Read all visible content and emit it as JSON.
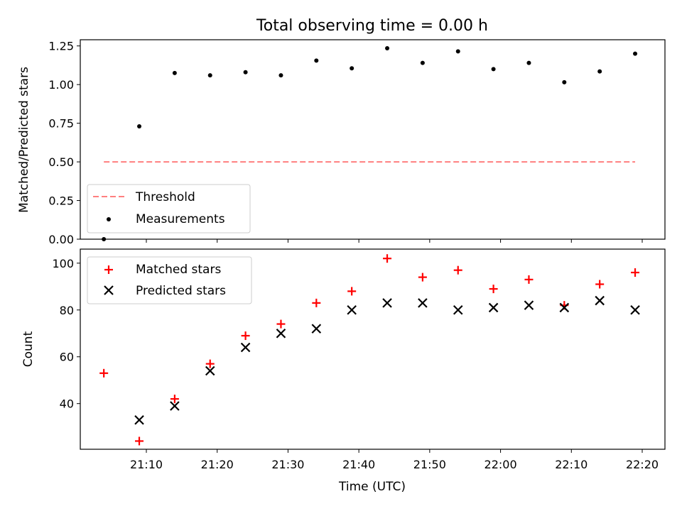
{
  "chart_data": {
    "title": "Total observing time = 0.00 h",
    "x_label": "Time (UTC)",
    "x_ticks": [
      "21:10",
      "21:20",
      "21:30",
      "21:40",
      "21:50",
      "22:00",
      "22:10",
      "22:20"
    ],
    "times": [
      "21:04",
      "21:09",
      "21:14",
      "21:19",
      "21:24",
      "21:29",
      "21:34",
      "21:39",
      "21:44",
      "21:49",
      "21:54",
      "21:59",
      "22:04",
      "22:09",
      "22:14",
      "22:19"
    ],
    "panels": [
      {
        "type": "scatter",
        "ylabel": "Matched/Predicted stars",
        "ylim": [
          0,
          1.29
        ],
        "y_ticks": [
          "0.00",
          "0.25",
          "0.50",
          "0.75",
          "1.00",
          "1.25"
        ],
        "threshold": {
          "name": "Threshold",
          "value": 0.5,
          "color": "#ff7f7f",
          "style": "dashed"
        },
        "series": [
          {
            "name": "Measurements",
            "marker": "dot",
            "color": "#000000",
            "values": [
              0.0,
              0.73,
              1.075,
              1.06,
              1.08,
              1.06,
              1.155,
              1.105,
              1.235,
              1.14,
              1.215,
              1.1,
              1.14,
              1.015,
              1.085,
              1.2
            ]
          }
        ],
        "legend": "lower-left"
      },
      {
        "type": "scatter",
        "ylabel": "Count",
        "ylim": [
          20.5,
          106
        ],
        "y_ticks": [
          "40",
          "60",
          "80",
          "100"
        ],
        "series": [
          {
            "name": "Matched stars",
            "marker": "plus",
            "color": "#ff0000",
            "values": [
              53,
              24,
              42,
              57,
              69,
              74,
              83,
              88,
              102,
              94,
              97,
              89,
              93,
              82,
              91,
              96
            ]
          },
          {
            "name": "Predicted stars",
            "marker": "x",
            "color": "#000000",
            "values": [
              null,
              33,
              39,
              54,
              64,
              70,
              72,
              80,
              83,
              83,
              80,
              81,
              82,
              81,
              84,
              80
            ]
          }
        ],
        "legend": "upper-left"
      }
    ]
  }
}
